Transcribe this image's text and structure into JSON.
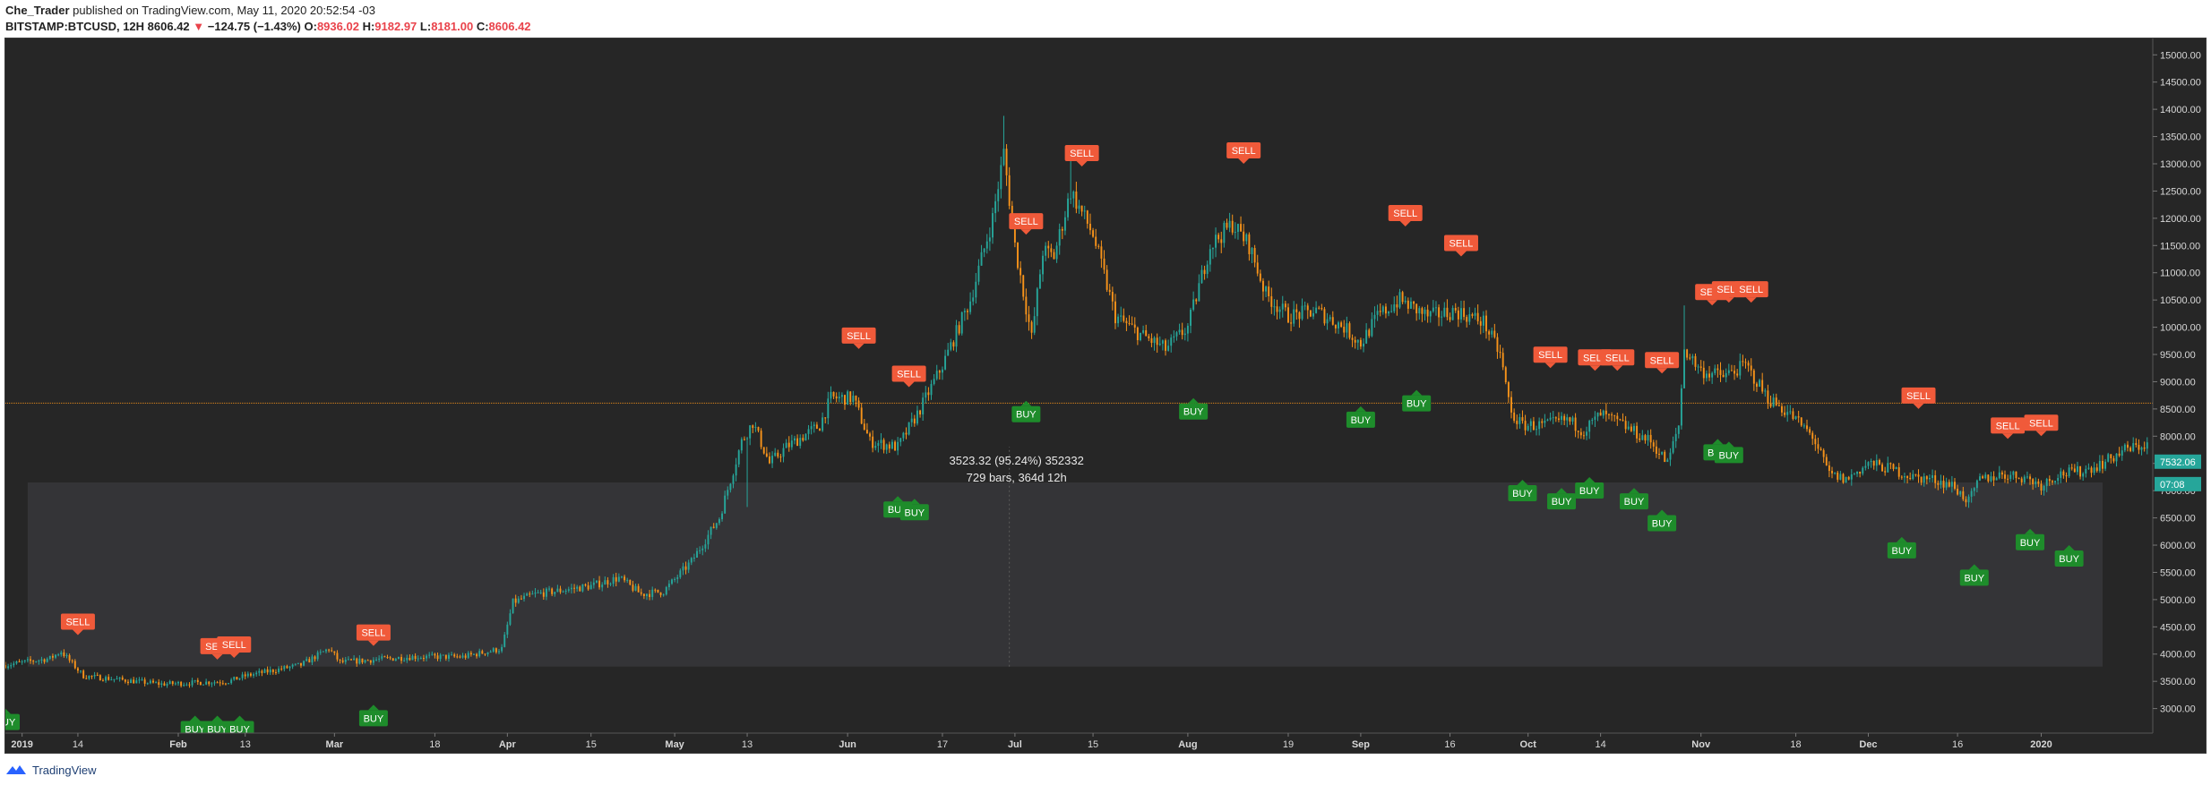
{
  "header": {
    "author": "Che_Trader",
    "published_text": "published on TradingView.com, May 11, 2020 20:52:54 -03",
    "symbol": "BITSTAMP:BTCUSD, 12H",
    "last": "8606.42",
    "change": "−124.75 (−1.43%)",
    "o_label": "O:",
    "o_value": "8936.02",
    "h_label": "H:",
    "h_value": "9182.97",
    "l_label": "L:",
    "l_value": "8181.00",
    "c_label": "C:",
    "c_value": "8606.42"
  },
  "footer": {
    "brand": "TradingView",
    "logo_icon": "tradingview-logo-icon"
  },
  "colors": {
    "background": "#262626",
    "up": "#26a69a",
    "down": "#f7931a",
    "sell": "#f05a3a",
    "buy": "#1e8c2b",
    "hline": "#f7931a",
    "range_box": "#3a3a3e"
  },
  "chart_data": {
    "type": "candlestick",
    "symbol": "BITSTAMP:BTCUSD",
    "interval": "12H",
    "y_range": [
      2550,
      15300
    ],
    "y_ticks": [
      3000,
      3500,
      4000,
      4500,
      5000,
      5500,
      6000,
      6500,
      7000,
      7500,
      8000,
      8500,
      9000,
      9500,
      10000,
      10500,
      11000,
      11500,
      12000,
      12500,
      13000,
      13500,
      14000,
      14500,
      15000
    ],
    "y_tick_labels": [
      "3000.00",
      "3500.00",
      "4000.00",
      "4500.00",
      "5000.00",
      "5500.00",
      "6000.00",
      "6500.00",
      "7000.00",
      "7500.00",
      "8000.00",
      "8500.00",
      "9000.00",
      "9500.00",
      "10000.00",
      "10500.00",
      "11000.00",
      "11500.00",
      "12000.00",
      "12500.00",
      "13000.00",
      "13500.00",
      "14000.00",
      "14500.00",
      "15000.00"
    ],
    "x_range_days": [
      0,
      385
    ],
    "x_ticks": [
      {
        "day": 3,
        "label": "2019"
      },
      {
        "day": 13,
        "label": "14"
      },
      {
        "day": 31,
        "label": "Feb"
      },
      {
        "day": 43,
        "label": "13"
      },
      {
        "day": 59,
        "label": "Mar"
      },
      {
        "day": 77,
        "label": "18"
      },
      {
        "day": 90,
        "label": "Apr"
      },
      {
        "day": 105,
        "label": "15"
      },
      {
        "day": 120,
        "label": "May"
      },
      {
        "day": 133,
        "label": "13"
      },
      {
        "day": 151,
        "label": "Jun"
      },
      {
        "day": 168,
        "label": "17"
      },
      {
        "day": 181,
        "label": "Jul"
      },
      {
        "day": 195,
        "label": "15"
      },
      {
        "day": 212,
        "label": "Aug"
      },
      {
        "day": 230,
        "label": "19"
      },
      {
        "day": 243,
        "label": "Sep"
      },
      {
        "day": 259,
        "label": "16"
      },
      {
        "day": 273,
        "label": "Oct"
      },
      {
        "day": 286,
        "label": "14"
      },
      {
        "day": 304,
        "label": "Nov"
      },
      {
        "day": 321,
        "label": "18"
      },
      {
        "day": 334,
        "label": "Dec"
      },
      {
        "day": 350,
        "label": "16"
      },
      {
        "day": 365,
        "label": "2020"
      }
    ],
    "price_path": [
      [
        0,
        3800
      ],
      [
        8,
        3920
      ],
      [
        10,
        4050
      ],
      [
        14,
        3600
      ],
      [
        28,
        3450
      ],
      [
        40,
        3500
      ],
      [
        43,
        3600
      ],
      [
        53,
        3800
      ],
      [
        58,
        4100
      ],
      [
        60,
        3850
      ],
      [
        73,
        3950
      ],
      [
        82,
        3950
      ],
      [
        89,
        4100
      ],
      [
        91,
        4950
      ],
      [
        95,
        5100
      ],
      [
        105,
        5250
      ],
      [
        110,
        5400
      ],
      [
        114,
        5100
      ],
      [
        118,
        5150
      ],
      [
        123,
        5700
      ],
      [
        128,
        6500
      ],
      [
        132,
        7900
      ],
      [
        134,
        8250
      ],
      [
        137,
        7500
      ],
      [
        140,
        7800
      ],
      [
        146,
        8200
      ],
      [
        148,
        8700
      ],
      [
        152,
        8700
      ],
      [
        155,
        7900
      ],
      [
        160,
        7800
      ],
      [
        164,
        8500
      ],
      [
        168,
        9300
      ],
      [
        173,
        10500
      ],
      [
        177,
        12000
      ],
      [
        179,
        13200
      ],
      [
        181,
        11500
      ],
      [
        184,
        9800
      ],
      [
        186,
        11400
      ],
      [
        188,
        11300
      ],
      [
        191,
        12500
      ],
      [
        193,
        12100
      ],
      [
        195,
        11700
      ],
      [
        199,
        10200
      ],
      [
        203,
        9900
      ],
      [
        208,
        9600
      ],
      [
        212,
        10000
      ],
      [
        216,
        11500
      ],
      [
        220,
        11900
      ],
      [
        223,
        11500
      ],
      [
        226,
        10600
      ],
      [
        230,
        10200
      ],
      [
        235,
        10300
      ],
      [
        240,
        10000
      ],
      [
        243,
        9700
      ],
      [
        246,
        10200
      ],
      [
        250,
        10500
      ],
      [
        255,
        10200
      ],
      [
        260,
        10300
      ],
      [
        265,
        10100
      ],
      [
        268,
        9500
      ],
      [
        270,
        8400
      ],
      [
        272,
        8200
      ],
      [
        276,
        8200
      ],
      [
        280,
        8300
      ],
      [
        283,
        8100
      ],
      [
        286,
        8400
      ],
      [
        290,
        8200
      ],
      [
        295,
        7900
      ],
      [
        298,
        7500
      ],
      [
        300,
        8200
      ],
      [
        301,
        9600
      ],
      [
        304,
        9200
      ],
      [
        308,
        9100
      ],
      [
        312,
        9300
      ],
      [
        316,
        8700
      ],
      [
        320,
        8400
      ],
      [
        324,
        8000
      ],
      [
        327,
        7300
      ],
      [
        330,
        7200
      ],
      [
        334,
        7500
      ],
      [
        338,
        7400
      ],
      [
        342,
        7250
      ],
      [
        346,
        7200
      ],
      [
        349,
        7100
      ],
      [
        352,
        6800
      ],
      [
        354,
        7200
      ],
      [
        358,
        7300
      ],
      [
        362,
        7250
      ],
      [
        365,
        7100
      ],
      [
        368,
        7300
      ],
      [
        372,
        7350
      ],
      [
        376,
        7500
      ],
      [
        380,
        7750
      ],
      [
        384,
        7850
      ]
    ],
    "spikes": [
      [
        179,
        13880
      ],
      [
        191,
        13200
      ],
      [
        301,
        10400
      ],
      [
        133,
        6700
      ]
    ],
    "signals": [
      {
        "type": "sell",
        "label": "SELL",
        "day": 13,
        "price": 4350
      },
      {
        "type": "sell",
        "label": "SELL",
        "day": 38,
        "price": 3900
      },
      {
        "type": "sell",
        "label": "SELL",
        "day": 41,
        "price": 3930
      },
      {
        "type": "sell",
        "label": "SELL",
        "day": 66,
        "price": 4150
      },
      {
        "type": "sell",
        "label": "SELL",
        "day": 153,
        "price": 9600
      },
      {
        "type": "sell",
        "label": "SELL",
        "day": 162,
        "price": 8900
      },
      {
        "type": "sell",
        "label": "SELL",
        "day": 183,
        "price": 11700
      },
      {
        "type": "sell",
        "label": "SELL",
        "day": 193,
        "price": 12950
      },
      {
        "type": "sell",
        "label": "SELL",
        "day": 222,
        "price": 13000
      },
      {
        "type": "sell",
        "label": "SELL",
        "day": 251,
        "price": 11850
      },
      {
        "type": "sell",
        "label": "SELL",
        "day": 261,
        "price": 11300
      },
      {
        "type": "sell",
        "label": "SELL",
        "day": 277,
        "price": 9250
      },
      {
        "type": "sell",
        "label": "SELL",
        "day": 285,
        "price": 9200
      },
      {
        "type": "sell",
        "label": "SELL",
        "day": 289,
        "price": 9200
      },
      {
        "type": "sell",
        "label": "SELL",
        "day": 297,
        "price": 9150
      },
      {
        "type": "sell",
        "label": "SELL",
        "day": 306,
        "price": 10400
      },
      {
        "type": "sell",
        "label": "SELL",
        "day": 309,
        "price": 10450
      },
      {
        "type": "sell",
        "label": "SELL",
        "day": 313,
        "price": 10450
      },
      {
        "type": "sell",
        "label": "SELL",
        "day": 343,
        "price": 8500
      },
      {
        "type": "sell",
        "label": "SELL",
        "day": 359,
        "price": 7950
      },
      {
        "type": "sell",
        "label": "SELL",
        "day": 365,
        "price": 8000
      },
      {
        "type": "buy",
        "label": "BUY",
        "day": 0,
        "price": 3000
      },
      {
        "type": "buy",
        "label": "BUY",
        "day": 34,
        "price": 2870
      },
      {
        "type": "buy",
        "label": "BUY",
        "day": 38,
        "price": 2870
      },
      {
        "type": "buy",
        "label": "BUY",
        "day": 42,
        "price": 2870
      },
      {
        "type": "buy",
        "label": "BUY",
        "day": 66,
        "price": 3070
      },
      {
        "type": "buy",
        "label": "BUY",
        "day": 160,
        "price": 6900
      },
      {
        "type": "buy",
        "label": "BUY",
        "day": 163,
        "price": 6850
      },
      {
        "type": "buy",
        "label": "BUY",
        "day": 183,
        "price": 8650
      },
      {
        "type": "buy",
        "label": "BUY",
        "day": 213,
        "price": 8700
      },
      {
        "type": "buy",
        "label": "BUY",
        "day": 243,
        "price": 8550
      },
      {
        "type": "buy",
        "label": "BUY",
        "day": 253,
        "price": 8850
      },
      {
        "type": "buy",
        "label": "BUY",
        "day": 272,
        "price": 7200
      },
      {
        "type": "buy",
        "label": "BUY",
        "day": 279,
        "price": 7050
      },
      {
        "type": "buy",
        "label": "BUY",
        "day": 284,
        "price": 7250
      },
      {
        "type": "buy",
        "label": "BUY",
        "day": 292,
        "price": 7050
      },
      {
        "type": "buy",
        "label": "BUY",
        "day": 297,
        "price": 6650
      },
      {
        "type": "buy",
        "label": "BUY",
        "day": 307,
        "price": 7950
      },
      {
        "type": "buy",
        "label": "BUY",
        "day": 309,
        "price": 7900
      },
      {
        "type": "buy",
        "label": "BUY",
        "day": 340,
        "price": 6150
      },
      {
        "type": "buy",
        "label": "BUY",
        "day": 353,
        "price": 5650
      },
      {
        "type": "buy",
        "label": "BUY",
        "day": 363,
        "price": 6300
      },
      {
        "type": "buy",
        "label": "BUY",
        "day": 370,
        "price": 6000
      }
    ],
    "horizontal_line": 8606.42,
    "range_box": {
      "day_start": 4,
      "day_end": 376,
      "price_low": 3770,
      "price_high": 7150
    },
    "measure_label_line1": "3523.32 (95.24%) 352332",
    "measure_label_line2": "729 bars, 364d 12h",
    "price_tags": [
      {
        "price": 7532.06,
        "label": "7532.06",
        "color": "#26a69a"
      },
      {
        "price": 7120,
        "label": "07:08",
        "color": "#26a69a"
      }
    ]
  }
}
